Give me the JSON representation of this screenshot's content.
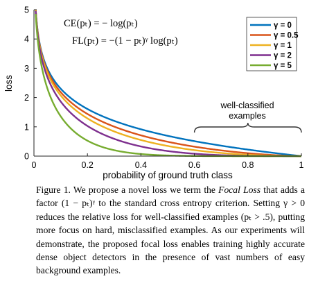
{
  "chart_data": {
    "type": "line",
    "xlabel": "probability of ground truth class",
    "ylabel": "loss",
    "xlim": [
      0,
      1
    ],
    "ylim": [
      0,
      5
    ],
    "xticks": [
      "0",
      "0.2",
      "0.4",
      "0.6",
      "0.8",
      "1"
    ],
    "yticks": [
      "0",
      "1",
      "2",
      "3",
      "4",
      "5"
    ],
    "grid": false,
    "legend_position": "top-right",
    "series": [
      {
        "name": "γ = 0",
        "gamma": 0,
        "color": "#0072BD",
        "x": [
          0.01,
          0.05,
          0.1,
          0.2,
          0.3,
          0.4,
          0.5,
          0.6,
          0.7,
          0.8,
          0.9,
          1.0
        ],
        "y": [
          4.61,
          3.0,
          2.3,
          1.61,
          1.2,
          0.92,
          0.69,
          0.51,
          0.36,
          0.22,
          0.11,
          0
        ]
      },
      {
        "name": "γ = 0.5",
        "gamma": 0.5,
        "color": "#D95319",
        "x": [
          0.01,
          0.05,
          0.1,
          0.2,
          0.3,
          0.4,
          0.5,
          0.6,
          0.7,
          0.8,
          0.9,
          1.0
        ],
        "y": [
          4.59,
          2.92,
          2.18,
          1.44,
          1.01,
          0.71,
          0.49,
          0.32,
          0.2,
          0.1,
          0.03,
          0
        ]
      },
      {
        "name": "γ = 1",
        "gamma": 1,
        "color": "#EDB120",
        "x": [
          0.01,
          0.05,
          0.1,
          0.2,
          0.3,
          0.4,
          0.5,
          0.6,
          0.7,
          0.8,
          0.9,
          1.0
        ],
        "y": [
          4.56,
          2.85,
          2.07,
          1.29,
          0.84,
          0.55,
          0.35,
          0.2,
          0.11,
          0.04,
          0.01,
          0
        ]
      },
      {
        "name": "γ = 2",
        "gamma": 2,
        "color": "#7E2F8E",
        "x": [
          0.01,
          0.05,
          0.1,
          0.2,
          0.3,
          0.4,
          0.5,
          0.6,
          0.7,
          0.8,
          0.9,
          1.0
        ],
        "y": [
          4.52,
          2.7,
          1.87,
          1.03,
          0.59,
          0.33,
          0.17,
          0.08,
          0.03,
          0.01,
          0.0,
          0
        ]
      },
      {
        "name": "γ = 5",
        "gamma": 5,
        "color": "#77AC30",
        "x": [
          0.01,
          0.05,
          0.1,
          0.2,
          0.3,
          0.4,
          0.5,
          0.6,
          0.7,
          0.8,
          0.9,
          1.0
        ],
        "y": [
          4.38,
          2.32,
          1.36,
          0.53,
          0.2,
          0.07,
          0.02,
          0.01,
          0.0,
          0.0,
          0.0,
          0
        ]
      }
    ],
    "annotations": {
      "formula_ce": "CE(pₜ) = − log(pₜ)",
      "formula_fl": "FL(pₜ) = −(1 − pₜ)ᵞ log(pₜ)",
      "well_classified_line1": "well-classified",
      "well_classified_line2": "examples",
      "bracket_x_range": [
        0.6,
        1.0
      ]
    }
  },
  "caption": {
    "label": "Figure 1.",
    "text1": "We propose a novel loss we term the",
    "emph": "Focal Loss",
    "text2": "that adds a factor (1 − pₜ)ᵞ to the standard cross entropy criterion. Setting γ > 0 reduces the relative loss for well-classified examples (pₜ > .5), putting more focus on hard, misclassified examples. As our experiments will demonstrate, the proposed focal loss enables training highly accurate dense object detectors in the presence of vast numbers of easy background examples."
  }
}
